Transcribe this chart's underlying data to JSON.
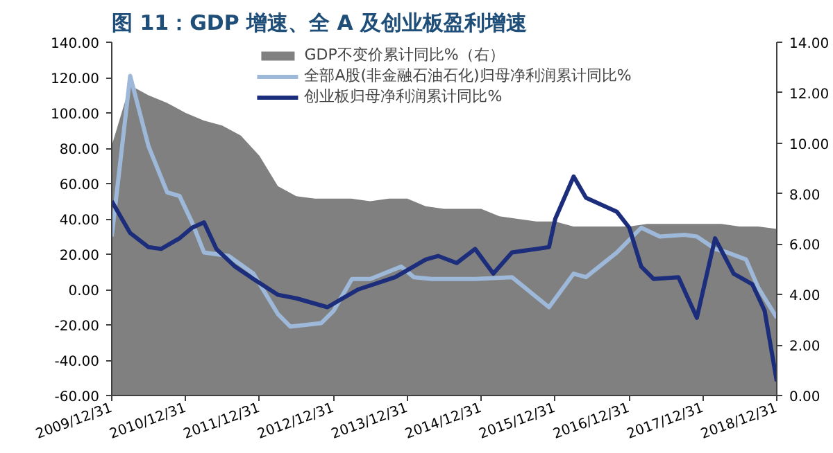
{
  "chart_data": {
    "type": "line",
    "title": "图 11：GDP 增速、全 A 及创业板盈利增速",
    "xlim": [
      "2009-12-31",
      "2018-12-31"
    ],
    "xticks": [
      {
        "value": "2009-12-31",
        "label": "2009/12/31"
      },
      {
        "value": "2010-12-31",
        "label": "2010/12/31"
      },
      {
        "value": "2011-12-31",
        "label": "2011/12/31"
      },
      {
        "value": "2012-12-31",
        "label": "2012/12/31"
      },
      {
        "value": "2013-12-31",
        "label": "2013/12/31"
      },
      {
        "value": "2014-12-31",
        "label": "2014/12/31"
      },
      {
        "value": "2015-12-31",
        "label": "2015/12/31"
      },
      {
        "value": "2016-12-31",
        "label": "2016/12/31"
      },
      {
        "value": "2017-12-31",
        "label": "2017/12/31"
      },
      {
        "value": "2018-12-31",
        "label": "2018/12/31"
      }
    ],
    "ylim": [
      -60,
      140
    ],
    "yticks": [
      {
        "value": -60,
        "label": "-60.00"
      },
      {
        "value": -40,
        "label": "-40.00"
      },
      {
        "value": -20,
        "label": "-20.00"
      },
      {
        "value": 0,
        "label": "0.00"
      },
      {
        "value": 20,
        "label": "20.00"
      },
      {
        "value": 40,
        "label": "40.00"
      },
      {
        "value": 60,
        "label": "60.00"
      },
      {
        "value": 80,
        "label": "80.00"
      },
      {
        "value": 100,
        "label": "100.00"
      },
      {
        "value": 120,
        "label": "120.00"
      },
      {
        "value": 140,
        "label": "140.00"
      }
    ],
    "y2lim": [
      0,
      14
    ],
    "y2ticks": [
      {
        "value": 0,
        "label": "0.00"
      },
      {
        "value": 2,
        "label": "2.00"
      },
      {
        "value": 4,
        "label": "4.00"
      },
      {
        "value": 6,
        "label": "6.00"
      },
      {
        "value": 8,
        "label": "8.00"
      },
      {
        "value": 10,
        "label": "10.00"
      },
      {
        "value": 12,
        "label": "12.00"
      },
      {
        "value": 14,
        "label": "14.00"
      }
    ],
    "grid": false,
    "legend": "top",
    "line_style": "solid",
    "series": [
      {
        "name": "GDP不变价累计同比%（右）",
        "type": "area",
        "axis": "y2",
        "color": "#808080",
        "x": [
          "2009-12-31",
          "2010-03-31",
          "2010-06-30",
          "2010-09-30",
          "2010-12-31",
          "2011-03-31",
          "2011-06-30",
          "2011-09-30",
          "2011-12-31",
          "2012-03-31",
          "2012-06-30",
          "2012-09-30",
          "2012-12-31",
          "2013-03-31",
          "2013-06-30",
          "2013-09-30",
          "2013-12-31",
          "2014-03-31",
          "2014-06-30",
          "2014-09-30",
          "2014-12-31",
          "2015-03-31",
          "2015-06-30",
          "2015-09-30",
          "2015-12-31",
          "2016-03-31",
          "2016-06-30",
          "2016-09-30",
          "2016-12-31",
          "2017-03-31",
          "2017-06-30",
          "2017-09-30",
          "2017-12-31",
          "2018-03-31",
          "2018-06-30",
          "2018-09-30",
          "2018-12-31"
        ],
        "values": [
          9.9,
          12.3,
          11.9,
          11.6,
          11.2,
          10.9,
          10.7,
          10.3,
          9.5,
          8.3,
          7.9,
          7.8,
          7.8,
          7.8,
          7.7,
          7.8,
          7.8,
          7.5,
          7.4,
          7.4,
          7.4,
          7.1,
          7.0,
          6.9,
          6.9,
          6.7,
          6.7,
          6.7,
          6.7,
          6.8,
          6.8,
          6.8,
          6.8,
          6.8,
          6.7,
          6.7,
          6.6
        ]
      },
      {
        "name": "全部A股(非金融石油石化)归母净利润累计同比%",
        "type": "line",
        "color": "#9db8d9",
        "x": [
          "2009-12-31",
          "2010-04",
          "2010-07",
          "2010-10",
          "2010-12",
          "2011-02",
          "2011-04",
          "2011-08",
          "2011-12",
          "2012-04",
          "2012-06",
          "2012-11",
          "2013-01",
          "2013-04",
          "2013-07",
          "2013-12",
          "2014-02",
          "2014-05",
          "2014-12",
          "2015-06",
          "2015-12",
          "2016-04",
          "2016-06",
          "2016-11",
          "2017-03",
          "2017-06",
          "2017-10",
          "2017-12",
          "2018-03",
          "2018-05",
          "2018-08",
          "2018-10",
          "2018-12-31"
        ],
        "values": [
          30,
          121,
          81,
          55,
          53,
          38,
          21,
          19,
          9,
          -14,
          -21,
          -19,
          -12,
          6,
          6,
          13,
          7,
          6,
          6,
          7,
          -10,
          9,
          7,
          21,
          35,
          30,
          31,
          30,
          23,
          21,
          17,
          1,
          -16
        ]
      },
      {
        "name": "创业板归母净利润累计同比%",
        "type": "line",
        "color": "#1c2d7c",
        "x": [
          "2009-12-31",
          "2010-04",
          "2010-07",
          "2010-09",
          "2010-12",
          "2011-02",
          "2011-04",
          "2011-06",
          "2011-09",
          "2011-12",
          "2012-04",
          "2012-07",
          "2012-12",
          "2013-05",
          "2013-11",
          "2014-04",
          "2014-06",
          "2014-09",
          "2014-12",
          "2015-03",
          "2015-06",
          "2015-12",
          "2016-01",
          "2016-04",
          "2016-06",
          "2016-11",
          "2017-01",
          "2017-03",
          "2017-05",
          "2017-09",
          "2017-12",
          "2018-03",
          "2018-06",
          "2018-09",
          "2018-11",
          "2018-12-31"
        ],
        "values": [
          50,
          32,
          24,
          23,
          29,
          35,
          38,
          23,
          13,
          6,
          -3,
          -5,
          -10,
          0,
          7,
          17,
          19,
          15,
          23,
          9,
          21,
          24,
          40,
          64,
          52,
          44,
          35,
          13,
          6,
          7,
          -16,
          29,
          9,
          3,
          -12,
          -52
        ]
      }
    ]
  }
}
